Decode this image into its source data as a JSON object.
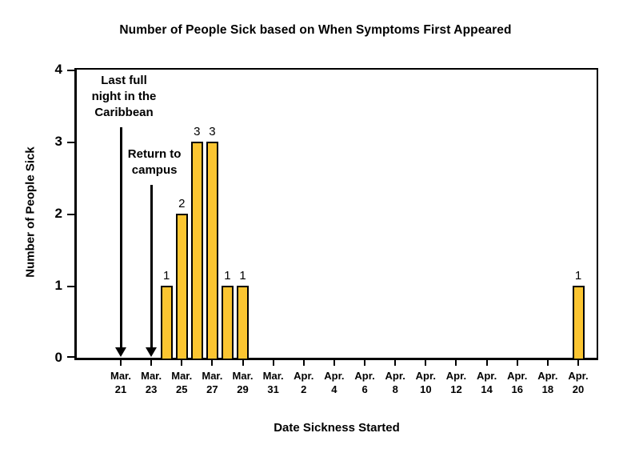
{
  "chart_data": {
    "type": "bar",
    "title": "Number of People Sick based on When Symptoms First Appeared",
    "xlabel": "Date Sickness Started",
    "ylabel": "Number of People Sick",
    "ylim": [
      0,
      4
    ],
    "yticks": [
      0,
      1,
      2,
      3,
      4
    ],
    "grid": false,
    "legend": null,
    "bar_color": "#FBC531",
    "bar_border_color": "#000000",
    "x_axis_days_span": 30,
    "x_tick_labels": [
      {
        "month": "Mar.",
        "day": "21",
        "day_index": 0
      },
      {
        "month": "Mar.",
        "day": "23",
        "day_index": 2
      },
      {
        "month": "Mar.",
        "day": "25",
        "day_index": 4
      },
      {
        "month": "Mar.",
        "day": "27",
        "day_index": 6
      },
      {
        "month": "Mar.",
        "day": "29",
        "day_index": 8
      },
      {
        "month": "Mar.",
        "day": "31",
        "day_index": 10
      },
      {
        "month": "Apr.",
        "day": "2",
        "day_index": 12
      },
      {
        "month": "Apr.",
        "day": "4",
        "day_index": 14
      },
      {
        "month": "Apr.",
        "day": "6",
        "day_index": 16
      },
      {
        "month": "Apr.",
        "day": "8",
        "day_index": 18
      },
      {
        "month": "Apr.",
        "day": "10",
        "day_index": 20
      },
      {
        "month": "Apr.",
        "day": "12",
        "day_index": 22
      },
      {
        "month": "Apr.",
        "day": "14",
        "day_index": 24
      },
      {
        "month": "Apr.",
        "day": "16",
        "day_index": 26
      },
      {
        "month": "Apr.",
        "day": "18",
        "day_index": 28
      },
      {
        "month": "Apr.",
        "day": "20",
        "day_index": 30
      }
    ],
    "bars": [
      {
        "date": "Mar. 24",
        "day_index": 3,
        "value": 1
      },
      {
        "date": "Mar. 25",
        "day_index": 4,
        "value": 2
      },
      {
        "date": "Mar. 26",
        "day_index": 5,
        "value": 3
      },
      {
        "date": "Mar. 27",
        "day_index": 6,
        "value": 3
      },
      {
        "date": "Mar. 28",
        "day_index": 7,
        "value": 1
      },
      {
        "date": "Mar. 29",
        "day_index": 8,
        "value": 1
      },
      {
        "date": "Apr. 20",
        "day_index": 30,
        "value": 1
      }
    ],
    "annotations": [
      {
        "lines": [
          "Last full",
          "night in the",
          "Caribbean"
        ],
        "day_index": 0
      },
      {
        "lines": [
          "Return to",
          "campus"
        ],
        "day_index": 2
      }
    ]
  }
}
